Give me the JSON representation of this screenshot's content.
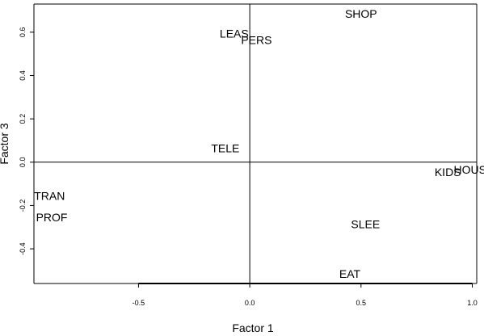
{
  "chart_data": {
    "type": "scatter",
    "xlabel": "Factor 1",
    "ylabel": "Factor 3",
    "xlim": [
      -0.97,
      1.02
    ],
    "ylim": [
      -0.56,
      0.73
    ],
    "x_ticks": [
      -0.5,
      0.0,
      0.5,
      1.0
    ],
    "x_tick_labels": [
      "-0.5",
      "0.0",
      "0.5",
      "1.0"
    ],
    "y_ticks": [
      -0.4,
      -0.2,
      0.0,
      0.2,
      0.4,
      0.6
    ],
    "y_tick_labels": [
      "-0.4",
      "-0.2",
      "0.0",
      "0.2",
      "0.4",
      "0.6"
    ],
    "reference_lines": {
      "x": 0,
      "y": 0
    },
    "grid": false,
    "points": [
      {
        "label": "SHOP",
        "x": 0.5,
        "y": 0.68
      },
      {
        "label": "LEAS",
        "x": -0.07,
        "y": 0.59
      },
      {
        "label": "PERS",
        "x": 0.03,
        "y": 0.56
      },
      {
        "label": "TELE",
        "x": -0.11,
        "y": 0.06
      },
      {
        "label": "KIDS",
        "x": 0.89,
        "y": -0.05
      },
      {
        "label": "HOUS",
        "x": 0.99,
        "y": -0.04
      },
      {
        "label": "TRAN",
        "x": -0.9,
        "y": -0.16
      },
      {
        "label": "PROF",
        "x": -0.89,
        "y": -0.26
      },
      {
        "label": "SLEE",
        "x": 0.52,
        "y": -0.29
      },
      {
        "label": "EAT",
        "x": 0.45,
        "y": -0.52
      }
    ]
  }
}
